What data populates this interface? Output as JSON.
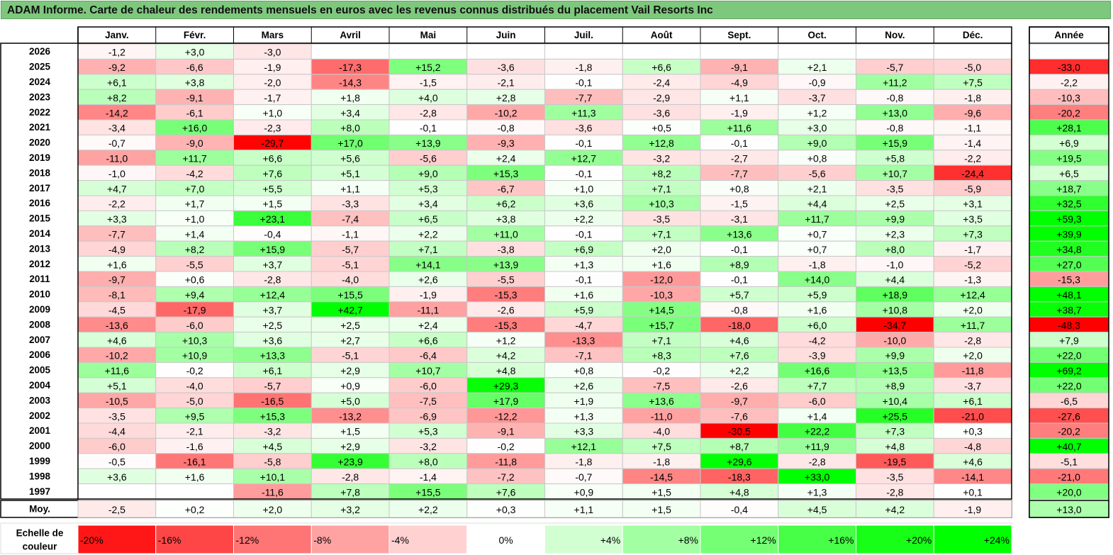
{
  "title": "ADAM Informe. Carte de chaleur des rendements mensuels en euros avec les revenus connus distribués du placement Vail Resorts Inc",
  "colors": {
    "title_bar": "#7ec87e",
    "negative_max": "#ff0000",
    "neutral": "#ffffff",
    "positive_max": "#00ff00"
  },
  "chart_data": {
    "type": "heatmap",
    "title": "ADAM Informe. Carte de chaleur des rendements mensuels en euros avec les revenus connus distribués du placement Vail Resorts Inc",
    "columns": [
      "Janv.",
      "Févr.",
      "Mars",
      "Avril",
      "Mai",
      "Juin",
      "Juil.",
      "Août",
      "Sept.",
      "Oct.",
      "Nov.",
      "Déc."
    ],
    "year_column_label": "Année",
    "rows": [
      {
        "year": "2026",
        "values": [
          "-1,2",
          "+3,0",
          "-3,0",
          "",
          "",
          "",
          "",
          "",
          "",
          "",
          "",
          ""
        ],
        "annual": ""
      },
      {
        "year": "2025",
        "values": [
          "-9,2",
          "-6,6",
          "-1,9",
          "-17,3",
          "+15,2",
          "-3,6",
          "-1,8",
          "+6,6",
          "-9,1",
          "+2,1",
          "-5,7",
          "-5,0"
        ],
        "annual": "-33,0"
      },
      {
        "year": "2024",
        "values": [
          "+6,1",
          "+3,8",
          "-2,0",
          "-14,3",
          "-1,5",
          "-2,1",
          "-0,1",
          "-2,4",
          "-4,9",
          "-0,9",
          "+11,2",
          "+7,5"
        ],
        "annual": "-2,2"
      },
      {
        "year": "2023",
        "values": [
          "+8,2",
          "-9,1",
          "-1,7",
          "+1,8",
          "+4,0",
          "+2,8",
          "-7,7",
          "-2,9",
          "+1,1",
          "-3,7",
          "-0,8",
          "-1,8"
        ],
        "annual": "-10,3"
      },
      {
        "year": "2022",
        "values": [
          "-14,2",
          "-6,1",
          "+1,0",
          "+3,4",
          "-2,8",
          "-10,2",
          "+11,3",
          "-3,6",
          "-1,9",
          "+1,2",
          "+13,0",
          "-9,6"
        ],
        "annual": "-20,2"
      },
      {
        "year": "2021",
        "values": [
          "-3,4",
          "+16,0",
          "-2,3",
          "+8,0",
          "-0,1",
          "-0,8",
          "-3,6",
          "+0,5",
          "+11,6",
          "+3,0",
          "-0,8",
          "-1,1"
        ],
        "annual": "+28,1"
      },
      {
        "year": "2020",
        "values": [
          "-0,7",
          "-9,0",
          "-29,7",
          "+17,0",
          "+13,9",
          "-9,3",
          "-0,1",
          "+12,8",
          "-0,1",
          "+9,0",
          "+15,9",
          "-1,4"
        ],
        "annual": "+6,9"
      },
      {
        "year": "2019",
        "values": [
          "-11,0",
          "+11,7",
          "+6,6",
          "+5,6",
          "-5,6",
          "+2,4",
          "+12,7",
          "-3,2",
          "-2,7",
          "+0,8",
          "+5,8",
          "-2,2"
        ],
        "annual": "+19,5"
      },
      {
        "year": "2018",
        "values": [
          "-1,0",
          "-4,2",
          "+7,6",
          "+5,1",
          "+9,0",
          "+15,3",
          "-0,1",
          "+8,2",
          "-7,7",
          "-5,6",
          "+10,7",
          "-24,4"
        ],
        "annual": "+6,5"
      },
      {
        "year": "2017",
        "values": [
          "+4,7",
          "+7,0",
          "+5,5",
          "+1,1",
          "+5,3",
          "-6,7",
          "+1,0",
          "+7,1",
          "+0,8",
          "+2,1",
          "-3,5",
          "-5,9"
        ],
        "annual": "+18,7"
      },
      {
        "year": "2016",
        "values": [
          "-2,2",
          "+1,7",
          "+1,5",
          "-3,3",
          "+3,4",
          "+6,2",
          "+3,6",
          "+10,3",
          "-1,5",
          "+4,4",
          "+2,5",
          "+3,1"
        ],
        "annual": "+32,5"
      },
      {
        "year": "2015",
        "values": [
          "+3,3",
          "+1,0",
          "+23,1",
          "-7,4",
          "+6,5",
          "+3,8",
          "+2,2",
          "-3,5",
          "-3,1",
          "+11,7",
          "+9,9",
          "+3,5"
        ],
        "annual": "+59,3"
      },
      {
        "year": "2014",
        "values": [
          "-7,7",
          "+1,4",
          "-0,4",
          "-1,1",
          "+2,2",
          "+11,0",
          "-0,1",
          "+7,1",
          "+13,6",
          "+0,7",
          "+2,3",
          "+7,3"
        ],
        "annual": "+39,9"
      },
      {
        "year": "2013",
        "values": [
          "-4,9",
          "+8,2",
          "+15,9",
          "-5,7",
          "+7,1",
          "-3,8",
          "+6,9",
          "+2,0",
          "-0,1",
          "+0,7",
          "+8,0",
          "-1,7"
        ],
        "annual": "+34,8"
      },
      {
        "year": "2012",
        "values": [
          "+1,6",
          "-5,5",
          "+3,7",
          "-5,1",
          "+14,1",
          "+13,9",
          "+1,3",
          "+1,6",
          "+8,9",
          "-1,8",
          "-1,0",
          "-5,2"
        ],
        "annual": "+27,0"
      },
      {
        "year": "2011",
        "values": [
          "-9,7",
          "+0,6",
          "-2,8",
          "-4,0",
          "+2,6",
          "-5,5",
          "-0,1",
          "-12,0",
          "-0,1",
          "+14,0",
          "+4,4",
          "-1,3"
        ],
        "annual": "-15,3"
      },
      {
        "year": "2010",
        "values": [
          "-8,1",
          "+9,4",
          "+12,4",
          "+15,5",
          "-1,9",
          "-15,3",
          "+1,6",
          "-10,3",
          "+5,7",
          "+5,9",
          "+18,9",
          "+12,4"
        ],
        "annual": "+48,1"
      },
      {
        "year": "2009",
        "values": [
          "-4,5",
          "-17,9",
          "+3,7",
          "+42,7",
          "-11,1",
          "-2,6",
          "+5,9",
          "+14,5",
          "-0,8",
          "+1,6",
          "+10,8",
          "+2,0"
        ],
        "annual": "+38,7"
      },
      {
        "year": "2008",
        "values": [
          "-13,6",
          "-6,0",
          "+2,5",
          "+2,5",
          "+2,4",
          "-15,3",
          "-4,7",
          "+15,7",
          "-18,0",
          "+6,0",
          "-34,7",
          "+11,7"
        ],
        "annual": "-48,3"
      },
      {
        "year": "2007",
        "values": [
          "+4,6",
          "+10,3",
          "+3,6",
          "+2,7",
          "+6,6",
          "+1,2",
          "-13,3",
          "+7,1",
          "+4,6",
          "-4,2",
          "-10,0",
          "-2,8"
        ],
        "annual": "+7,9"
      },
      {
        "year": "2006",
        "values": [
          "-10,2",
          "+10,9",
          "+13,3",
          "-5,1",
          "-6,4",
          "+4,2",
          "-7,1",
          "+8,3",
          "+7,6",
          "-3,9",
          "+9,9",
          "+2,0"
        ],
        "annual": "+22,0"
      },
      {
        "year": "2005",
        "values": [
          "+11,6",
          "-0,2",
          "+6,1",
          "+2,9",
          "+10,7",
          "+4,8",
          "+0,8",
          "-0,2",
          "+2,2",
          "+16,6",
          "+13,5",
          "-11,8"
        ],
        "annual": "+69,2"
      },
      {
        "year": "2004",
        "values": [
          "+5,1",
          "-4,0",
          "-5,7",
          "+0,9",
          "-6,0",
          "+29,3",
          "+2,6",
          "-7,5",
          "-2,6",
          "+7,7",
          "+8,9",
          "-3,7"
        ],
        "annual": "+22,0"
      },
      {
        "year": "2003",
        "values": [
          "-10,5",
          "-5,0",
          "-16,5",
          "+5,0",
          "-7,5",
          "+17,9",
          "+1,9",
          "+13,6",
          "-9,7",
          "-6,0",
          "+10,4",
          "+6,1"
        ],
        "annual": "-6,5"
      },
      {
        "year": "2002",
        "values": [
          "-3,5",
          "+9,5",
          "+15,3",
          "-13,2",
          "-6,9",
          "-12,2",
          "+1,3",
          "-11,0",
          "-7,6",
          "+1,4",
          "+25,5",
          "-21,0"
        ],
        "annual": "-27,6"
      },
      {
        "year": "2001",
        "values": [
          "-4,4",
          "-2,1",
          "-3,2",
          "+1,5",
          "+5,3",
          "-9,1",
          "+3,3",
          "-4,0",
          "-30,5",
          "+22,2",
          "+7,3",
          "+0,3"
        ],
        "annual": "-20,2"
      },
      {
        "year": "2000",
        "values": [
          "-6,0",
          "-1,6",
          "+4,5",
          "+2,9",
          "-3,2",
          "-0,2",
          "+12,1",
          "+7,5",
          "+8,7",
          "+11,9",
          "+4,8",
          "-4,8"
        ],
        "annual": "+40,7"
      },
      {
        "year": "1999",
        "values": [
          "-0,5",
          "-16,1",
          "-5,8",
          "+23,9",
          "+8,0",
          "-11,8",
          "-1,8",
          "-1,8",
          "+29,6",
          "-2,8",
          "-19,5",
          "+4,6"
        ],
        "annual": "-5,1"
      },
      {
        "year": "1998",
        "values": [
          "+3,6",
          "+1,6",
          "+10,1",
          "-2,8",
          "-1,4",
          "-7,2",
          "-0,7",
          "-14,5",
          "-18,3",
          "+33,0",
          "-3,5",
          "-14,1"
        ],
        "annual": "-21,0"
      },
      {
        "year": "1997",
        "values": [
          "",
          "",
          "-11,6",
          "+7,8",
          "+15,5",
          "+7,6",
          "+0,9",
          "+1,5",
          "+4,8",
          "+1,3",
          "-2,8",
          "+0,1"
        ],
        "annual": "+20,0"
      }
    ],
    "average": {
      "label": "Moy.",
      "values": [
        "-2,5",
        "+0,2",
        "+2,0",
        "+3,2",
        "+2,2",
        "+0,3",
        "+1,1",
        "+1,5",
        "-0,4",
        "+4,5",
        "+4,2",
        "-1,9"
      ],
      "annual": "+13,0"
    },
    "color_scale": {
      "label": "Echelle de couleur",
      "stops": [
        "-20%",
        "-16%",
        "-12%",
        "-8%",
        "-4%",
        "0%",
        "+4%",
        "+8%",
        "+12%",
        "+16%",
        "+20%",
        "+24%"
      ],
      "range": [
        -20,
        24
      ]
    }
  }
}
